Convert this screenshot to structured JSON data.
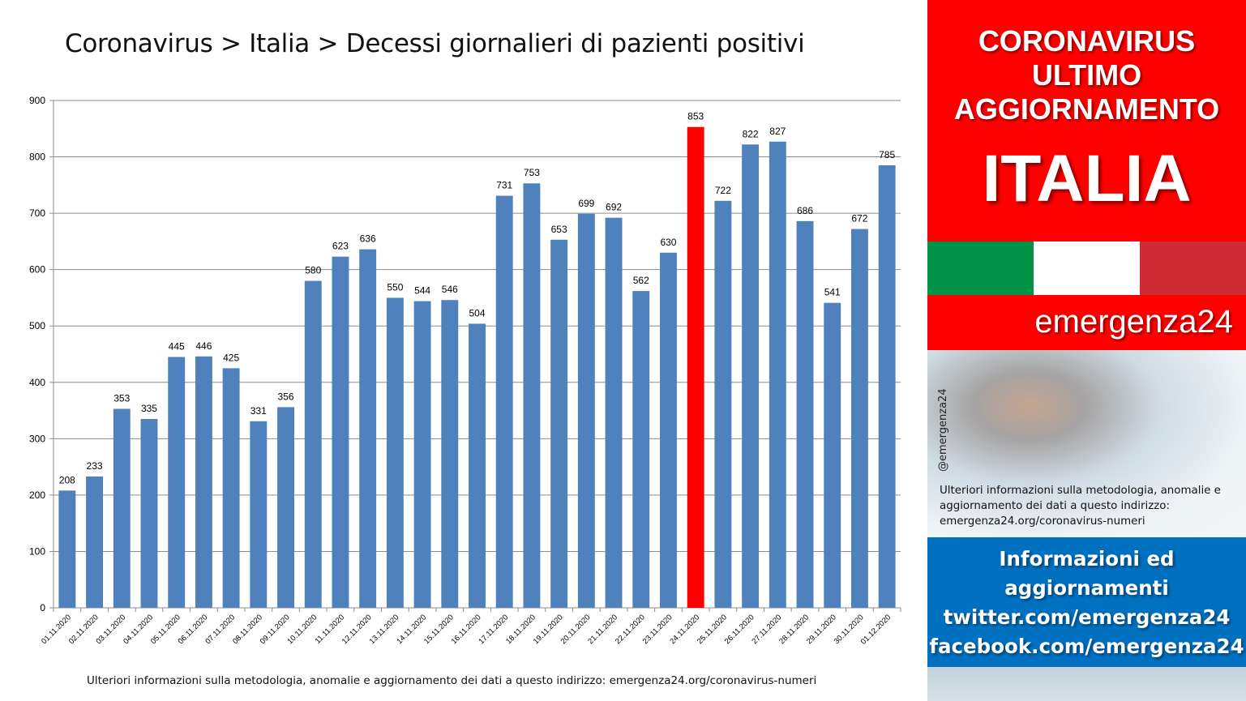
{
  "chart_title": "Coronavirus > Italia > Decessi giornalieri di pazienti positivi",
  "chart_footnote": "Ulteriori informazioni sulla metodologia, anomalie e aggiornamento dei dati a questo indirizzo: emergenza24.org/coronavirus-numeri",
  "chart_data": {
    "type": "bar",
    "title": "Coronavirus > Italia > Decessi giornalieri di pazienti positivi",
    "xlabel": "",
    "ylabel": "",
    "ylim": [
      0,
      900
    ],
    "yticks": [
      0,
      100,
      200,
      300,
      400,
      500,
      600,
      700,
      800,
      900
    ],
    "grid": true,
    "categories": [
      "01.11.2020",
      "02.11.2020",
      "03.11.2020",
      "04.11.2020",
      "05.11.2020",
      "06.11.2020",
      "07.11.2020",
      "08.11.2020",
      "09.11.2020",
      "10.11.2020",
      "11.11.2020",
      "12.11.2020",
      "13.11.2020",
      "14.11.2020",
      "15.11.2020",
      "16.11.2020",
      "17.11.2020",
      "18.11.2020",
      "19.11.2020",
      "20.11.2020",
      "21.11.2020",
      "22.11.2020",
      "23.11.2020",
      "24.11.2020",
      "25.11.2020",
      "26.11.2020",
      "27.11.2020",
      "28.11.2020",
      "29.11.2020",
      "30.11.2020",
      "01.12.2020"
    ],
    "values": [
      208,
      233,
      353,
      335,
      445,
      446,
      425,
      331,
      356,
      580,
      623,
      636,
      550,
      544,
      546,
      504,
      731,
      753,
      653,
      699,
      692,
      562,
      630,
      853,
      722,
      822,
      827,
      686,
      541,
      672,
      785
    ],
    "highlight_category": "24.11.2020",
    "bar_color": "#4f81bd",
    "highlight_color": "#ff0000",
    "data_labels": true
  },
  "side_panel": {
    "headline_lines": [
      "CORONAVIRUS",
      "ULTIMO",
      "AGGIORNAMENTO"
    ],
    "country": "ITALIA",
    "brand": "emergenza24",
    "handle": "@emergenza24",
    "note": "Ulteriori informazioni sulla metodologia, anomalie e aggiornamento dei dati a questo indirizzo: emergenza24.org/coronavirus-numeri",
    "info_lines": [
      "Informazioni ed",
      "aggiornamenti",
      "twitter.com/emergenza24",
      "facebook.com/emergenza24"
    ],
    "colors": {
      "panel_red": "#fe0000",
      "info_blue": "#0070c0",
      "flag_green": "#009246",
      "flag_white": "#ffffff",
      "flag_red": "#ce2b37"
    }
  }
}
